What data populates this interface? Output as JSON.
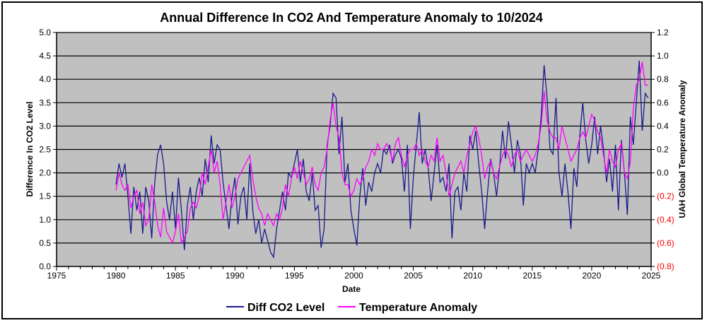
{
  "chart_data": {
    "type": "line",
    "title": "Annual Difference In CO2  And Temperature Anomaly to 10/2024",
    "xlabel": "Date",
    "ylabel": "Difference In CO2 Level",
    "y2label": "UAH Global Temperature Anomaly",
    "xlim": [
      1975,
      2025
    ],
    "ylim": [
      0,
      5
    ],
    "y2lim": [
      -0.8,
      1.2
    ],
    "x_ticks": [
      "1975",
      "1980",
      "1985",
      "1990",
      "1995",
      "2000",
      "2005",
      "2010",
      "2015",
      "2020",
      "2025"
    ],
    "y_ticks": [
      "0.0",
      "0.5",
      "1.0",
      "1.5",
      "2.0",
      "2.5",
      "3.0",
      "3.5",
      "4.0",
      "4.5",
      "5.0"
    ],
    "y2_ticks": [
      "(0.8)",
      "(0.6)",
      "(0.4)",
      "(0.2)",
      "0.0",
      "0.2",
      "0.4",
      "0.6",
      "0.8",
      "1.0",
      "1.2"
    ],
    "grid": true,
    "legend_position": "bottom",
    "x_start": 1980,
    "x_step": 0.25,
    "series": [
      {
        "name": "Diff CO2 Level",
        "axis": "left",
        "color": "#1a1a8c",
        "values": [
          1.75,
          2.2,
          1.9,
          2.2,
          1.5,
          0.7,
          1.7,
          1.2,
          1.6,
          0.7,
          1.7,
          1.4,
          0.6,
          1.8,
          2.4,
          2.6,
          2.2,
          1.4,
          1.0,
          1.6,
          0.8,
          1.9,
          1.2,
          0.35,
          1.3,
          1.7,
          1.0,
          1.6,
          1.9,
          1.5,
          2.3,
          1.8,
          2.8,
          2.2,
          2.6,
          2.5,
          1.8,
          1.3,
          0.8,
          1.5,
          1.9,
          0.9,
          1.5,
          1.7,
          1.0,
          2.2,
          1.2,
          0.7,
          1.0,
          0.5,
          0.8,
          0.55,
          0.3,
          0.2,
          0.8,
          1.2,
          1.6,
          1.2,
          2.0,
          1.9,
          2.2,
          2.5,
          1.8,
          2.3,
          1.6,
          1.4,
          2.0,
          1.2,
          1.3,
          0.4,
          0.8,
          2.6,
          3.0,
          3.7,
          3.6,
          2.4,
          3.2,
          1.8,
          2.2,
          1.2,
          0.8,
          0.45,
          1.5,
          2.1,
          1.3,
          1.8,
          1.6,
          2.0,
          2.2,
          2.0,
          2.5,
          2.4,
          2.6,
          2.2,
          2.4,
          2.5,
          2.3,
          1.6,
          2.6,
          0.8,
          1.9,
          2.6,
          3.3,
          2.2,
          2.5,
          2.1,
          1.4,
          2.0,
          2.6,
          1.8,
          1.9,
          1.6,
          2.2,
          0.6,
          1.6,
          1.7,
          1.2,
          2.0,
          1.6,
          2.8,
          2.5,
          2.9,
          2.2,
          1.6,
          0.8,
          1.6,
          2.3,
          2.0,
          1.5,
          2.1,
          2.9,
          2.3,
          3.1,
          2.6,
          2.0,
          2.7,
          2.4,
          1.3,
          2.2,
          2.0,
          2.2,
          2.0,
          2.5,
          3.2,
          4.3,
          3.6,
          2.5,
          2.4,
          3.6,
          2.0,
          1.5,
          2.2,
          1.6,
          0.8,
          2.1,
          1.7,
          2.8,
          3.5,
          2.7,
          2.2,
          2.6,
          3.2,
          2.4,
          3.0,
          2.5,
          1.8,
          2.3,
          1.6,
          2.6,
          1.2,
          2.7,
          2.0,
          1.1,
          3.2,
          2.6,
          3.5,
          4.4,
          2.9,
          3.7,
          3.6
        ]
      },
      {
        "name": "Temperature Anomaly",
        "axis": "right",
        "color": "#ff00ff",
        "values": [
          -0.15,
          0.0,
          -0.1,
          -0.15,
          -0.1,
          -0.3,
          -0.2,
          -0.15,
          -0.35,
          -0.25,
          -0.45,
          -0.4,
          -0.1,
          -0.25,
          -0.45,
          -0.55,
          -0.3,
          -0.5,
          -0.55,
          -0.6,
          -0.5,
          -0.35,
          -0.6,
          -0.55,
          -0.5,
          -0.3,
          -0.25,
          -0.3,
          -0.2,
          0.0,
          -0.1,
          0.05,
          0.2,
          0.0,
          0.1,
          -0.1,
          -0.4,
          -0.25,
          -0.1,
          -0.3,
          -0.2,
          -0.05,
          0.0,
          0.05,
          0.1,
          0.15,
          -0.05,
          -0.2,
          -0.3,
          -0.35,
          -0.45,
          -0.35,
          -0.4,
          -0.45,
          -0.35,
          -0.4,
          -0.3,
          -0.1,
          -0.2,
          -0.05,
          0.05,
          -0.05,
          0.1,
          0.0,
          -0.1,
          -0.05,
          0.05,
          -0.1,
          -0.15,
          0.0,
          0.05,
          0.2,
          0.45,
          0.6,
          0.4,
          0.3,
          0.0,
          -0.1,
          -0.1,
          -0.2,
          -0.15,
          -0.05,
          -0.1,
          -0.05,
          0.05,
          0.1,
          0.2,
          0.15,
          0.25,
          0.2,
          0.2,
          0.25,
          0.2,
          0.1,
          0.25,
          0.3,
          0.15,
          0.05,
          0.15,
          0.2,
          0.2,
          0.25,
          0.15,
          0.2,
          0.1,
          0.05,
          0.15,
          0.1,
          0.3,
          0.1,
          0.15,
          0.0,
          -0.2,
          -0.1,
          0.0,
          0.05,
          0.1,
          0.0,
          0.15,
          0.25,
          0.35,
          0.4,
          0.3,
          0.15,
          -0.05,
          0.05,
          0.1,
          0.0,
          -0.05,
          0.05,
          0.15,
          0.2,
          0.15,
          0.05,
          0.15,
          0.2,
          0.1,
          0.15,
          0.2,
          0.15,
          0.1,
          0.15,
          0.25,
          0.4,
          0.7,
          0.45,
          0.35,
          0.3,
          0.3,
          0.2,
          0.4,
          0.3,
          0.2,
          0.1,
          0.15,
          0.2,
          0.3,
          0.35,
          0.3,
          0.4,
          0.5,
          0.45,
          0.35,
          0.3,
          0.15,
          0.0,
          0.2,
          0.1,
          0.05,
          0.2,
          0.25,
          0.0,
          -0.05,
          0.1,
          0.55,
          0.75,
          0.8,
          0.95,
          0.75,
          0.75
        ]
      }
    ],
    "colors": {
      "plot_bg": "#c0c0c0",
      "negative_tick": "#ff0000"
    }
  }
}
